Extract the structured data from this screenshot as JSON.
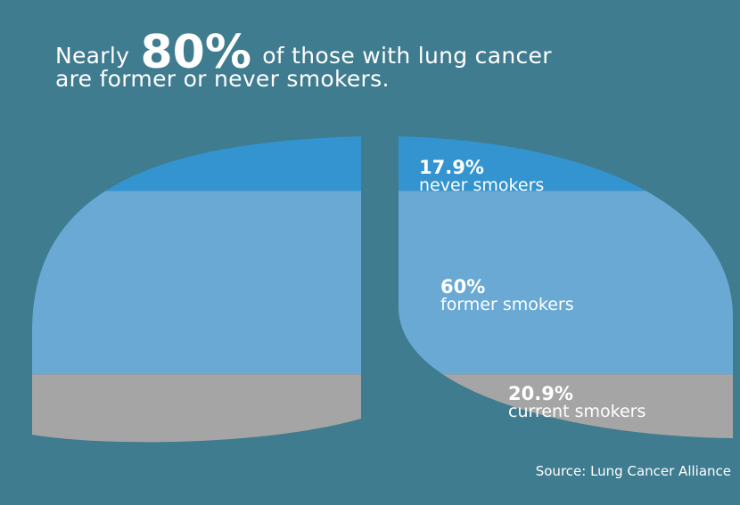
{
  "colors": {
    "frame": "#1f4550",
    "background": "#3f7c8f",
    "never": "#3494cf",
    "former": "#69a9d4",
    "current": "#a5a5a5"
  },
  "headline": {
    "prefix": "Nearly",
    "emphasis": "80%",
    "suffix": "of those with lung cancer",
    "line2": "are former or never smokers."
  },
  "source": "Source: Lung Cancer Alliance",
  "chart_data": {
    "type": "stacked-area",
    "unit": "%",
    "series": [
      {
        "key": "never",
        "value": 17.9,
        "value_label": "17.9%",
        "label": "never smokers"
      },
      {
        "key": "former",
        "value": 60,
        "value_label": "60%",
        "label": "former smokers"
      },
      {
        "key": "current",
        "value": 20.9,
        "value_label": "20.9%",
        "label": "current smokers"
      }
    ]
  }
}
